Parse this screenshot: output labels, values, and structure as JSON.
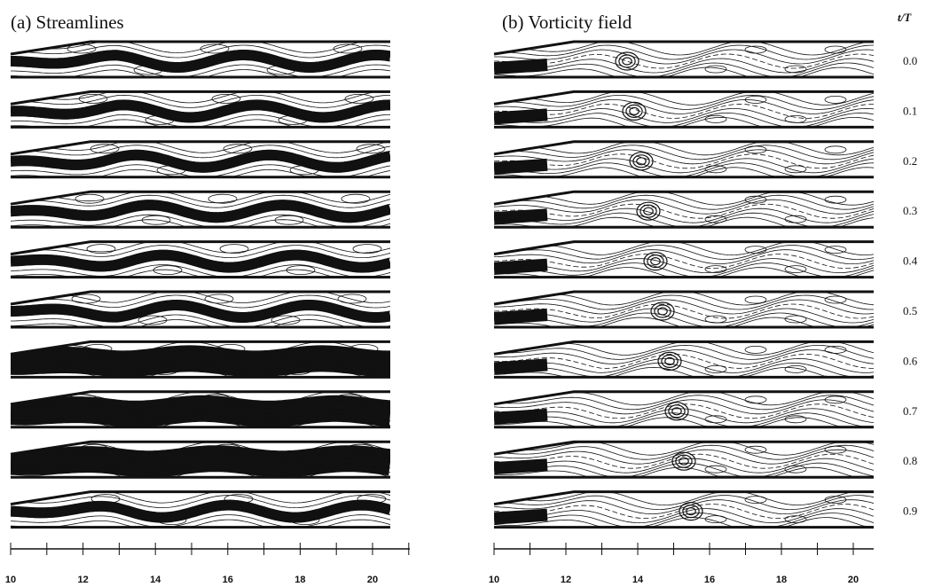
{
  "panels": [
    {
      "title": "(a) Streamlines"
    },
    {
      "title": "(b) Vorticity field"
    }
  ],
  "time_header": "t/T",
  "times": [
    "0.0",
    "0.1",
    "0.2",
    "0.3",
    "0.4",
    "0.5",
    "0.6",
    "0.7",
    "0.8",
    "0.9"
  ],
  "axis_labels": [
    "10",
    "12",
    "14",
    "16",
    "18",
    "20"
  ]
}
